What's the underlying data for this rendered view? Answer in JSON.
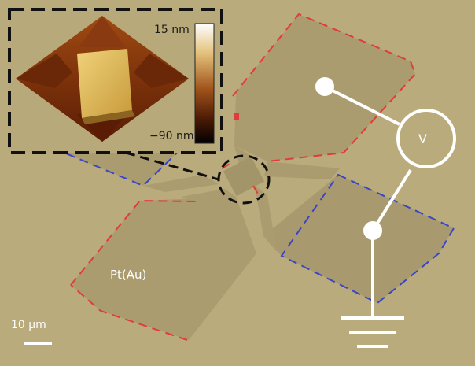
{
  "figure": {
    "material_label": "Pt(Au)",
    "voltmeter_label": "V",
    "scale_bar_label": "10 μm",
    "colorbar": {
      "max_label": "15 nm",
      "min_label": "−90 nm"
    },
    "colors": {
      "background": "#b9ab7c",
      "pad_fill": "#ab9c70",
      "red_dash": "#e23b3b",
      "blue_dash": "#3a45c8",
      "circuit": "#ffffff",
      "inset_border": "#111111"
    },
    "icons": [
      "voltmeter-icon",
      "ground-icon",
      "scale-bar"
    ]
  }
}
